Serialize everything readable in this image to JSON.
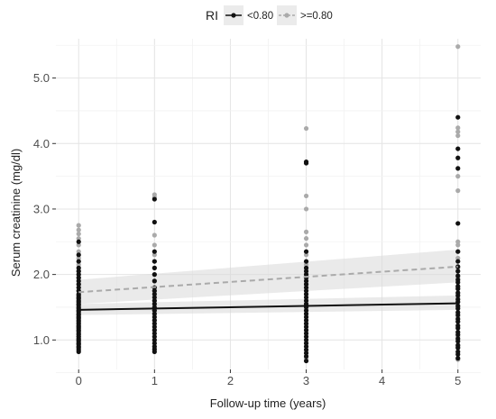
{
  "chart_data": {
    "type": "scatter",
    "title": "",
    "xlabel": "Follow-up time (years)",
    "ylabel": "Serum creatinine (mg/dl)",
    "xlim": [
      -0.3,
      5.3
    ],
    "ylim": [
      0.55,
      5.6
    ],
    "x_ticks": [
      0,
      1,
      2,
      3,
      4,
      5
    ],
    "x_tick_labels": [
      "0",
      "1",
      "2",
      "3",
      "4",
      "5"
    ],
    "y_ticks": [
      1.0,
      2.0,
      3.0,
      4.0,
      5.0
    ],
    "y_tick_labels": [
      "1.0",
      "2.0",
      "3.0",
      "4.0",
      "5.0"
    ],
    "grid": true,
    "legend": {
      "title": "RI",
      "placement": "top",
      "entries": [
        "<0.80",
        ">=0.80"
      ]
    },
    "series": [
      {
        "name": "<0.80",
        "color": "#111111",
        "line_style": "solid",
        "points": [
          {
            "x": 0,
            "y": [
              0.82,
              0.85,
              0.88,
              0.9,
              0.93,
              0.95,
              0.98,
              1.0,
              1.02,
              1.05,
              1.08,
              1.1,
              1.13,
              1.15,
              1.18,
              1.2,
              1.22,
              1.25,
              1.28,
              1.3,
              1.33,
              1.35,
              1.38,
              1.4,
              1.43,
              1.45,
              1.48,
              1.5,
              1.53,
              1.55,
              1.58,
              1.6,
              1.63,
              1.65,
              1.68,
              1.7,
              1.75,
              1.8,
              1.85,
              1.9,
              1.95,
              2.0,
              2.05,
              2.1,
              2.2,
              2.3,
              2.5
            ]
          },
          {
            "x": 1,
            "y": [
              0.82,
              0.86,
              0.9,
              0.95,
              1.0,
              1.05,
              1.1,
              1.15,
              1.2,
              1.25,
              1.3,
              1.35,
              1.4,
              1.45,
              1.5,
              1.55,
              1.6,
              1.65,
              1.7,
              1.75,
              1.8,
              1.9,
              2.0,
              2.1,
              2.2,
              2.35,
              2.8,
              3.15
            ]
          },
          {
            "x": 3,
            "y": [
              0.68,
              0.75,
              0.8,
              0.85,
              0.9,
              0.95,
              1.0,
              1.05,
              1.1,
              1.15,
              1.2,
              1.25,
              1.3,
              1.35,
              1.4,
              1.45,
              1.5,
              1.55,
              1.6,
              1.65,
              1.7,
              1.75,
              1.8,
              1.85,
              1.9,
              1.95,
              2.0,
              2.05,
              2.1,
              2.2,
              2.35,
              3.7,
              3.72
            ]
          },
          {
            "x": 5,
            "y": [
              0.72,
              0.78,
              0.82,
              0.88,
              0.92,
              0.98,
              1.02,
              1.08,
              1.12,
              1.18,
              1.22,
              1.28,
              1.32,
              1.38,
              1.42,
              1.48,
              1.52,
              1.58,
              1.62,
              1.68,
              1.72,
              1.78,
              1.82,
              1.88,
              1.92,
              1.98,
              2.05,
              2.12,
              2.2,
              2.35,
              2.78,
              3.62,
              3.78,
              3.92,
              4.4
            ]
          }
        ],
        "trend": {
          "x": [
            0,
            5
          ],
          "y": [
            1.46,
            1.56
          ],
          "ci_low": [
            1.38,
            1.46
          ],
          "ci_high": [
            1.55,
            1.68
          ]
        }
      },
      {
        "name": ">=0.80",
        "color": "#aaaaaa",
        "line_style": "dashed",
        "points": [
          {
            "x": 0,
            "y": [
              0.95,
              1.05,
              1.15,
              1.25,
              1.35,
              1.45,
              1.55,
              1.65,
              1.75,
              1.85,
              1.95,
              2.05,
              2.15,
              2.25,
              2.35,
              2.45,
              2.55,
              2.62,
              2.68,
              2.75
            ]
          },
          {
            "x": 1,
            "y": [
              0.85,
              1.0,
              1.15,
              1.3,
              1.45,
              1.6,
              1.75,
              1.9,
              2.0,
              2.1,
              2.2,
              2.3,
              2.45,
              2.6,
              3.18,
              3.22
            ]
          },
          {
            "x": 3,
            "y": [
              0.72,
              0.95,
              1.1,
              1.25,
              1.4,
              1.55,
              1.7,
              1.85,
              2.0,
              2.15,
              2.3,
              2.45,
              2.55,
              2.65,
              3.0,
              3.2,
              4.23
            ]
          },
          {
            "x": 5,
            "y": [
              0.7,
              0.9,
              1.05,
              1.2,
              1.35,
              1.5,
              1.65,
              1.8,
              1.95,
              2.1,
              2.25,
              2.35,
              2.45,
              2.5,
              3.28,
              3.5,
              4.12,
              4.18,
              4.24,
              5.48
            ]
          }
        ],
        "trend": {
          "x": [
            0,
            5
          ],
          "y": [
            1.73,
            2.12
          ],
          "ci_low": [
            1.55,
            1.88
          ],
          "ci_high": [
            1.92,
            2.38
          ]
        }
      }
    ]
  }
}
